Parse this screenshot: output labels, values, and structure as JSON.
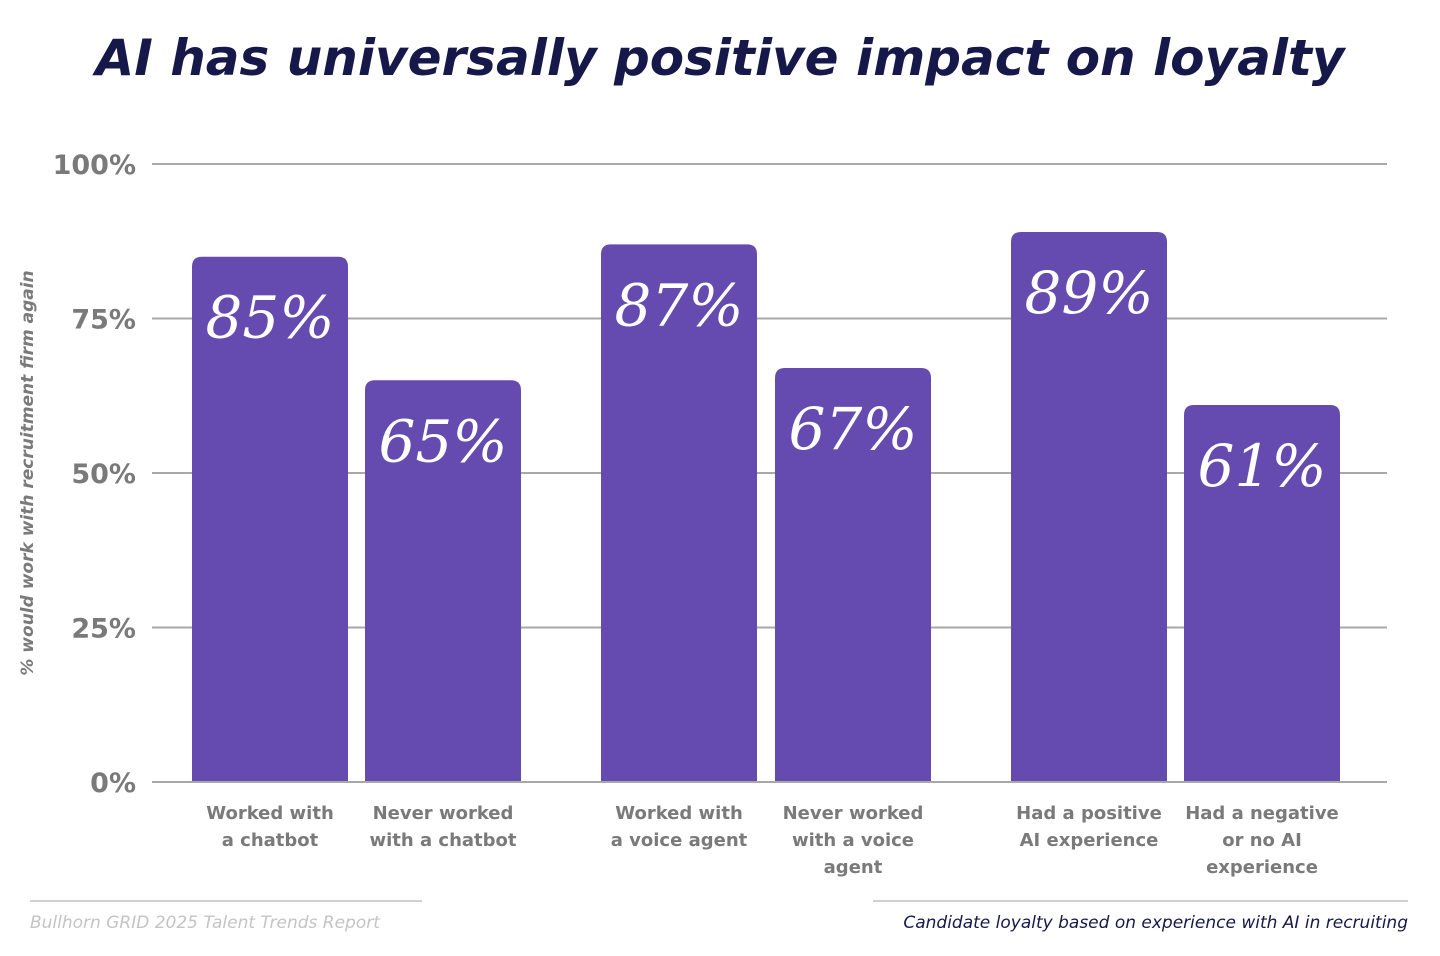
{
  "chart_data": {
    "type": "bar",
    "title": "AI has universally positive impact on loyalty",
    "ylabel": "% would work with recruitment firm again",
    "xlabel": "",
    "ylim": [
      0,
      100
    ],
    "yticks": [
      0,
      25,
      50,
      75,
      100
    ],
    "ytick_labels": [
      "0%",
      "25%",
      "50%",
      "75%",
      "100%"
    ],
    "grid": true,
    "categories": [
      [
        "Worked with",
        "a chatbot"
      ],
      [
        "Never worked",
        "with a chatbot"
      ],
      [
        "Worked with",
        "a voice agent"
      ],
      [
        "Never worked",
        "with a voice",
        "agent"
      ],
      [
        "Had a positive",
        "AI experience"
      ],
      [
        "Had a negative",
        "or no AI",
        "experience"
      ]
    ],
    "values": [
      85,
      65,
      87,
      67,
      89,
      61
    ],
    "data_labels": [
      "85%",
      "65%",
      "87%",
      "67%",
      "89%",
      "61%"
    ],
    "groups": [
      [
        0,
        1
      ],
      [
        2,
        3
      ],
      [
        4,
        5
      ]
    ],
    "colors": {
      "bar": "#654bb0",
      "title": "#16184a",
      "axis_text": "#7a7a7a",
      "grid": "#a8a8a8"
    }
  },
  "footer": {
    "source": "Bullhorn GRID 2025 Talent Trends Report",
    "caption": "Candidate loyalty based on experience with AI in recruiting"
  }
}
